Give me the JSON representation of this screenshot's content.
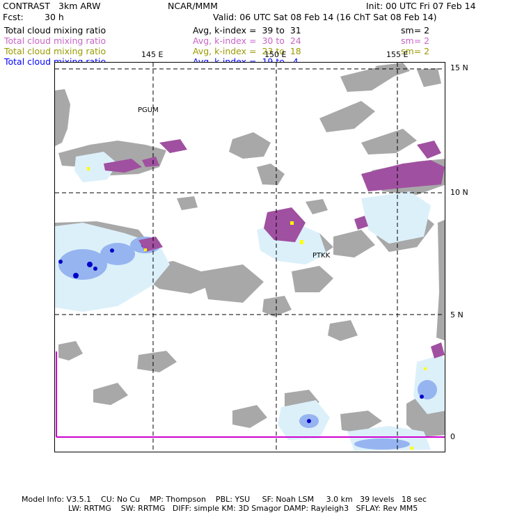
{
  "header": {
    "product": "CONTRAST",
    "model": "3km ARW",
    "org": "NCAR/MMM",
    "init": "Init: 00 UTC Fri 07 Feb 14",
    "fcst_label": "Fcst:",
    "fcst_value": "30 h",
    "valid": "Valid: 06 UTC Sat 08 Feb 14 (16 ChT Sat 08 Feb 14)"
  },
  "legend": [
    {
      "field": "Total cloud mixing ratio",
      "range": "Avg, k-index =  39 to  31",
      "sm": "sm= 2",
      "color": "#000000"
    },
    {
      "field": "Total cloud mixing ratio",
      "range": "Avg, k-index =  30 to  24",
      "sm": "sm= 2",
      "color": "#c864c8"
    },
    {
      "field": "Total cloud mixing ratio",
      "range": "Avg, k-index =  23 to  18",
      "sm": "sm= 2",
      "color": "#9a9a00"
    },
    {
      "field": "Total cloud mixing ratio",
      "range": "Avg, k-index =  19 to   4",
      "sm": "",
      "color": "#0000ff"
    }
  ],
  "map": {
    "lon_labels": [
      "145 E",
      "150 E",
      "155 E"
    ],
    "lat_labels": [
      "15 N",
      "10 N",
      "5 N",
      "0"
    ],
    "stations": [
      "PGUM",
      "PTKK"
    ],
    "colors": {
      "land": "#a8a8a8",
      "grid": "#000000",
      "equator_line": "#d000d0",
      "cloud_light": "#dcf0fa",
      "cloud_blue": "#96b4f0",
      "cloud_deep": "#0000c8",
      "cloud_purple": "#a050a0",
      "cloud_yellow": "#ffff00"
    }
  },
  "footer": {
    "line1": "Model Info: V3.5.1    CU: No Cu    MP: Thompson    PBL: YSU     SF: Noah LSM     3.0 km   39 levels   18 sec",
    "line2": "LW: RRTMG    SW: RRTMG   DIFF: simple KM: 3D Smagor DAMP: Rayleigh3   SFLAY: Rev MM5"
  }
}
